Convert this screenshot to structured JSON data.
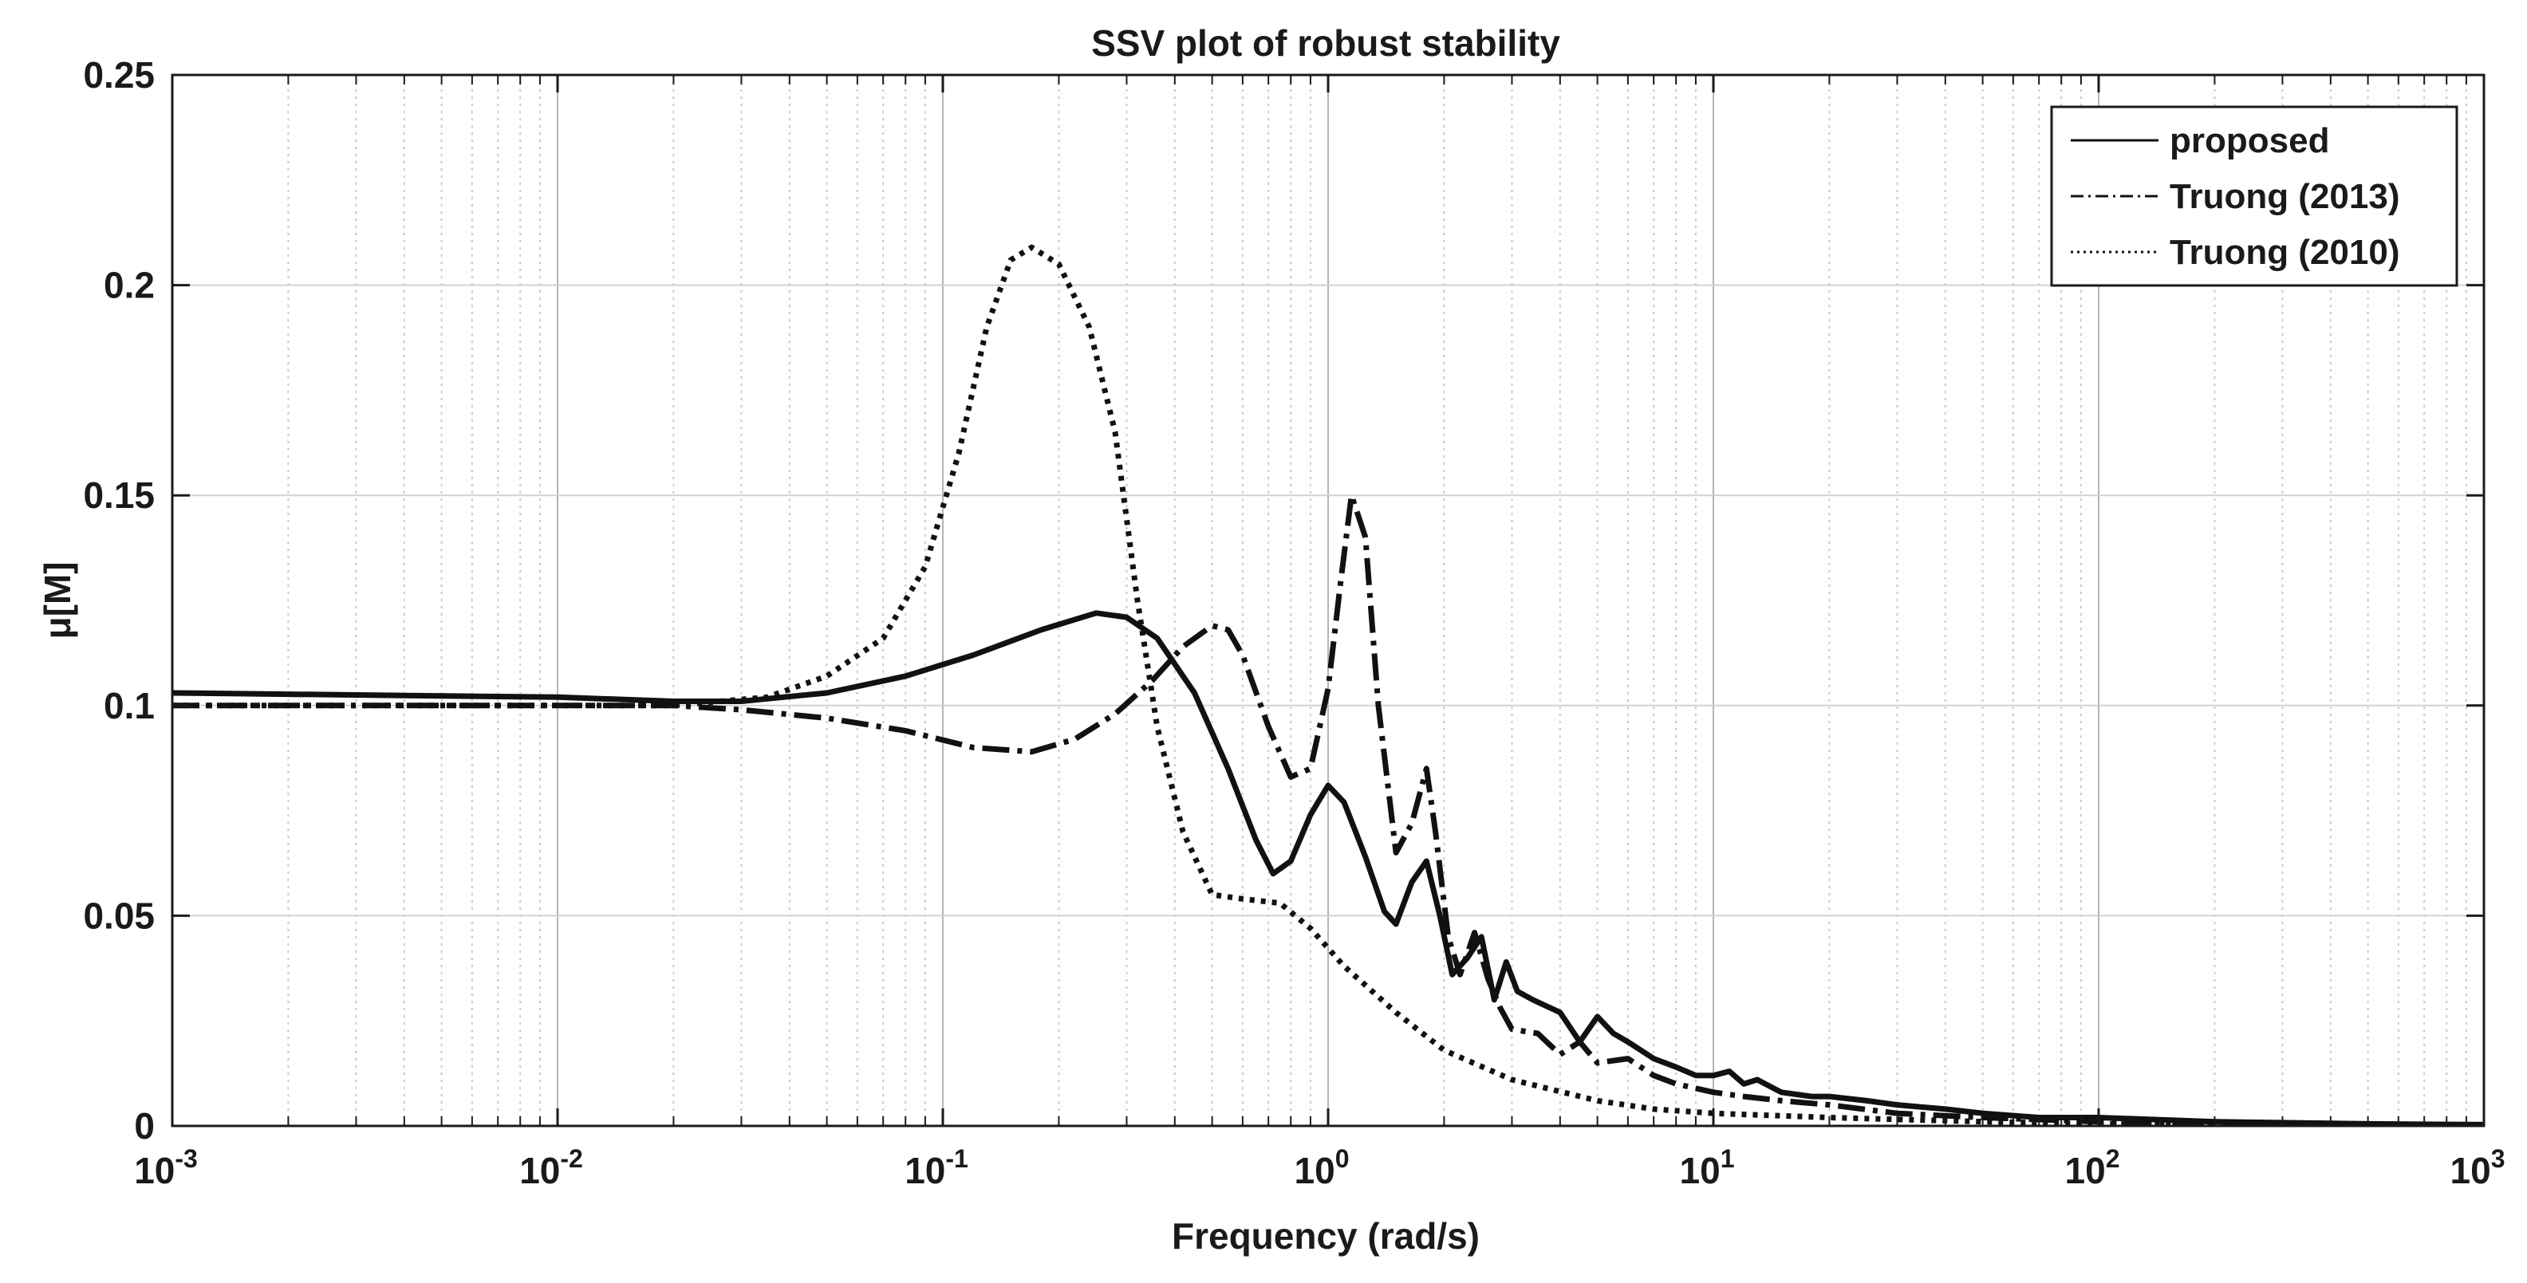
{
  "chart_data": {
    "type": "line",
    "title": "SSV plot of robust stability",
    "xlabel": "Frequency  (rad/s)",
    "ylabel": "μ[M]",
    "xscale": "log",
    "xlim": [
      0.001,
      1000
    ],
    "ylim": [
      0,
      0.25
    ],
    "grid": true,
    "legend_position": "top-right",
    "x_ticks": [
      {
        "value": 0.001,
        "base": "10",
        "exp": "-3"
      },
      {
        "value": 0.01,
        "base": "10",
        "exp": "-2"
      },
      {
        "value": 0.1,
        "base": "10",
        "exp": "-1"
      },
      {
        "value": 1,
        "base": "10",
        "exp": "0"
      },
      {
        "value": 10,
        "base": "10",
        "exp": "1"
      },
      {
        "value": 100,
        "base": "10",
        "exp": "2"
      },
      {
        "value": 1000,
        "base": "10",
        "exp": "3"
      }
    ],
    "y_ticks": [
      {
        "value": 0,
        "label": "0"
      },
      {
        "value": 0.05,
        "label": "0.05"
      },
      {
        "value": 0.1,
        "label": "0.1"
      },
      {
        "value": 0.15,
        "label": "0.15"
      },
      {
        "value": 0.2,
        "label": "0.2"
      },
      {
        "value": 0.25,
        "label": "0.25"
      }
    ],
    "series": [
      {
        "name": "proposed",
        "style": "solid",
        "x": [
          0.001,
          0.01,
          0.02,
          0.03,
          0.05,
          0.08,
          0.12,
          0.18,
          0.25,
          0.3,
          0.36,
          0.45,
          0.55,
          0.65,
          0.72,
          0.8,
          0.9,
          1.0,
          1.1,
          1.25,
          1.4,
          1.5,
          1.65,
          1.8,
          1.95,
          2.1,
          2.3,
          2.5,
          2.7,
          2.9,
          3.1,
          3.4,
          4.0,
          4.5,
          5.0,
          5.5,
          6.0,
          7.0,
          8.0,
          9.0,
          10.0,
          11.0,
          12.0,
          13.0,
          15.0,
          18.0,
          20.0,
          25.0,
          30.0,
          40.0,
          50.0,
          70.0,
          100.0,
          200.0,
          500.0,
          1000.0
        ],
        "y": [
          0.103,
          0.102,
          0.101,
          0.101,
          0.103,
          0.107,
          0.112,
          0.118,
          0.122,
          0.121,
          0.116,
          0.103,
          0.085,
          0.068,
          0.06,
          0.063,
          0.074,
          0.081,
          0.077,
          0.064,
          0.051,
          0.048,
          0.058,
          0.063,
          0.05,
          0.036,
          0.04,
          0.045,
          0.03,
          0.039,
          0.032,
          0.03,
          0.027,
          0.02,
          0.026,
          0.022,
          0.02,
          0.016,
          0.014,
          0.012,
          0.012,
          0.013,
          0.01,
          0.011,
          0.008,
          0.007,
          0.007,
          0.006,
          0.005,
          0.004,
          0.003,
          0.002,
          0.002,
          0.001,
          0.0005,
          0.0003
        ]
      },
      {
        "name": "Truong (2013)",
        "style": "dashdot",
        "x": [
          0.001,
          0.01,
          0.02,
          0.03,
          0.05,
          0.08,
          0.12,
          0.17,
          0.22,
          0.28,
          0.35,
          0.42,
          0.5,
          0.55,
          0.6,
          0.7,
          0.8,
          0.9,
          1.0,
          1.08,
          1.15,
          1.25,
          1.35,
          1.5,
          1.65,
          1.8,
          1.9,
          2.05,
          2.2,
          2.4,
          2.6,
          2.8,
          3.0,
          3.5,
          4.0,
          4.5,
          5.0,
          6.0,
          7.0,
          8.0,
          10.0,
          12.0,
          15.0,
          20.0,
          30.0,
          50.0,
          100.0,
          200.0,
          500.0,
          1000.0
        ],
        "y": [
          0.1,
          0.1,
          0.1,
          0.099,
          0.097,
          0.094,
          0.09,
          0.089,
          0.092,
          0.098,
          0.106,
          0.114,
          0.119,
          0.118,
          0.112,
          0.095,
          0.083,
          0.085,
          0.104,
          0.13,
          0.15,
          0.14,
          0.1,
          0.065,
          0.072,
          0.085,
          0.07,
          0.045,
          0.036,
          0.046,
          0.035,
          0.028,
          0.023,
          0.022,
          0.017,
          0.02,
          0.015,
          0.016,
          0.012,
          0.01,
          0.008,
          0.007,
          0.006,
          0.005,
          0.003,
          0.002,
          0.001,
          0.0006,
          0.0003,
          0.0002
        ]
      },
      {
        "name": "Truong (2010)",
        "style": "dotted",
        "x": [
          0.001,
          0.01,
          0.02,
          0.035,
          0.05,
          0.07,
          0.09,
          0.11,
          0.13,
          0.15,
          0.17,
          0.2,
          0.24,
          0.28,
          0.32,
          0.36,
          0.42,
          0.5,
          0.6,
          0.75,
          0.9,
          1.1,
          1.5,
          2.0,
          3.0,
          5.0,
          7.0,
          10.0,
          20.0,
          50.0,
          100.0,
          300.0,
          1000.0
        ],
        "y": [
          0.1,
          0.1,
          0.1,
          0.102,
          0.107,
          0.116,
          0.133,
          0.16,
          0.19,
          0.206,
          0.209,
          0.205,
          0.19,
          0.165,
          0.125,
          0.095,
          0.07,
          0.055,
          0.054,
          0.053,
          0.047,
          0.038,
          0.027,
          0.018,
          0.011,
          0.006,
          0.004,
          0.003,
          0.002,
          0.001,
          0.0005,
          0.0002,
          0.0001
        ]
      }
    ]
  }
}
